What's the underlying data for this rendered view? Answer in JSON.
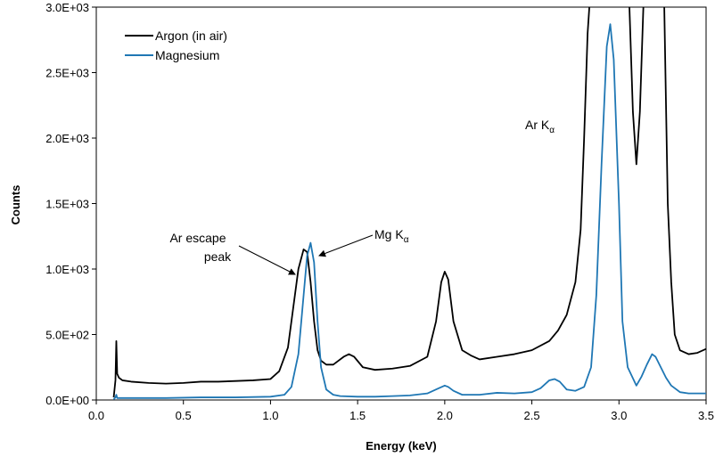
{
  "chart_data": {
    "type": "line",
    "title": "",
    "xlabel": "Energy (keV)",
    "ylabel": "Counts",
    "xlim": [
      0.0,
      3.5
    ],
    "ylim": [
      0,
      3000
    ],
    "x_ticks": [
      0.0,
      0.5,
      1.0,
      1.5,
      2.0,
      2.5,
      3.0,
      3.5
    ],
    "x_tick_labels": [
      "0.0",
      "0.5",
      "1.0",
      "1.5",
      "2.0",
      "2.5",
      "3.0",
      "3.5"
    ],
    "y_ticks": [
      0,
      500,
      1000,
      1500,
      2000,
      2500,
      3000
    ],
    "y_tick_labels": [
      "0.0E+00",
      "5.0E+02",
      "1.0E+03",
      "1.5E+03",
      "2.0E+03",
      "2.5E+03",
      "3.0E+03"
    ],
    "grid": false,
    "legend_position": "top-left",
    "series": [
      {
        "name": "Argon (in air)",
        "color": "#000000",
        "x": [
          0.1,
          0.11,
          0.115,
          0.12,
          0.13,
          0.15,
          0.2,
          0.3,
          0.4,
          0.5,
          0.6,
          0.7,
          0.8,
          0.9,
          1.0,
          1.05,
          1.1,
          1.13,
          1.16,
          1.19,
          1.21,
          1.23,
          1.25,
          1.27,
          1.29,
          1.32,
          1.36,
          1.42,
          1.45,
          1.48,
          1.53,
          1.6,
          1.7,
          1.8,
          1.9,
          1.95,
          1.98,
          2.0,
          2.02,
          2.05,
          2.1,
          2.15,
          2.2,
          2.3,
          2.4,
          2.5,
          2.6,
          2.65,
          2.7,
          2.75,
          2.78,
          2.8,
          2.82,
          2.83
        ],
        "y": [
          20,
          150,
          450,
          200,
          170,
          150,
          140,
          130,
          125,
          130,
          140,
          140,
          145,
          150,
          160,
          220,
          400,
          700,
          1000,
          1150,
          1130,
          900,
          600,
          380,
          300,
          270,
          270,
          330,
          350,
          330,
          250,
          230,
          240,
          260,
          330,
          600,
          900,
          980,
          920,
          600,
          380,
          340,
          310,
          330,
          350,
          380,
          450,
          530,
          650,
          900,
          1300,
          2000,
          2800,
          3000
        ],
        "x_2": [
          3.06,
          3.08,
          3.1,
          3.12,
          3.14
        ],
        "y_2": [
          3000,
          2200,
          1800,
          2200,
          3000
        ],
        "x_3": [
          3.26,
          3.28,
          3.3,
          3.32,
          3.35,
          3.4,
          3.45,
          3.5
        ],
        "y_3": [
          3000,
          1500,
          900,
          500,
          380,
          350,
          360,
          390
        ]
      },
      {
        "name": "Magnesium",
        "color": "#1f77b4",
        "x": [
          0.1,
          0.11,
          0.115,
          0.12,
          0.14,
          0.2,
          0.4,
          0.6,
          0.8,
          1.0,
          1.08,
          1.12,
          1.16,
          1.19,
          1.21,
          1.23,
          1.25,
          1.27,
          1.29,
          1.32,
          1.36,
          1.4,
          1.5,
          1.6,
          1.7,
          1.8,
          1.9,
          1.95,
          2.0,
          2.02,
          2.05,
          2.1,
          2.2,
          2.3,
          2.4,
          2.5,
          2.55,
          2.6,
          2.63,
          2.66,
          2.7,
          2.75,
          2.8,
          2.84,
          2.87,
          2.9,
          2.93,
          2.95,
          2.97,
          3.0,
          3.02,
          3.05,
          3.1,
          3.13,
          3.16,
          3.19,
          3.21,
          3.24,
          3.27,
          3.3,
          3.35,
          3.4,
          3.45,
          3.5
        ],
        "y": [
          5,
          20,
          40,
          15,
          15,
          15,
          15,
          20,
          20,
          25,
          40,
          100,
          350,
          800,
          1100,
          1200,
          1050,
          600,
          250,
          80,
          40,
          30,
          25,
          25,
          30,
          35,
          50,
          80,
          110,
          100,
          70,
          40,
          40,
          55,
          50,
          60,
          90,
          150,
          160,
          140,
          80,
          70,
          100,
          250,
          800,
          1800,
          2700,
          2870,
          2600,
          1500,
          600,
          250,
          110,
          180,
          270,
          350,
          330,
          250,
          170,
          110,
          60,
          50,
          50,
          50
        ]
      }
    ],
    "annotations": [
      {
        "lines": [
          "Ar escape",
          "peak"
        ]
      },
      {
        "text": "Mg K",
        "sub": "α"
      },
      {
        "text": "Ar K",
        "sub": "α"
      }
    ]
  }
}
